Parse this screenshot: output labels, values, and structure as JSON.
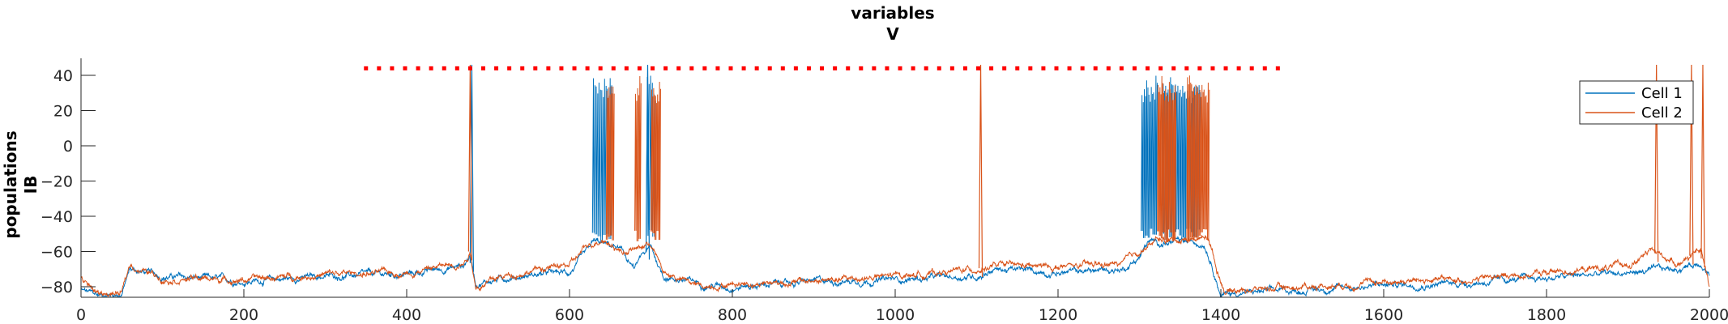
{
  "chart_data": {
    "type": "line",
    "title": [
      "variables",
      "V"
    ],
    "ylabel": [
      "populations",
      "IB"
    ],
    "xlabel": "",
    "xlim": [
      0,
      2000
    ],
    "ylim": [
      -86,
      46
    ],
    "xticks": [
      0,
      200,
      400,
      600,
      800,
      1000,
      1200,
      1400,
      1600,
      1800,
      2000
    ],
    "yticks": [
      -80,
      -60,
      -40,
      -20,
      0,
      20,
      40
    ],
    "grid": false,
    "legend": {
      "position": "top-right",
      "entries": [
        "Cell 1",
        "Cell 2"
      ]
    },
    "colors": {
      "cell1": "#0072BD",
      "cell2": "#D95319",
      "marker": "#FF0000"
    },
    "series": [
      {
        "name": "Cell 1",
        "baseline": [
          [
            0,
            -82
          ],
          [
            20,
            -85
          ],
          [
            50,
            -84
          ],
          [
            60,
            -70
          ],
          [
            100,
            -74
          ],
          [
            200,
            -77
          ],
          [
            300,
            -74
          ],
          [
            400,
            -73
          ],
          [
            470,
            -68
          ],
          [
            478,
            -62
          ],
          [
            485,
            -78
          ],
          [
            520,
            -75
          ],
          [
            560,
            -73
          ],
          [
            600,
            -72
          ],
          [
            620,
            -62
          ],
          [
            630,
            -55
          ],
          [
            660,
            -58
          ],
          [
            680,
            -70
          ],
          [
            690,
            -62
          ],
          [
            700,
            -58
          ],
          [
            715,
            -74
          ],
          [
            760,
            -78
          ],
          [
            800,
            -80
          ],
          [
            900,
            -77
          ],
          [
            1000,
            -76
          ],
          [
            1100,
            -74
          ],
          [
            1120,
            -70
          ],
          [
            1200,
            -72
          ],
          [
            1280,
            -70
          ],
          [
            1300,
            -63
          ],
          [
            1310,
            -55
          ],
          [
            1380,
            -55
          ],
          [
            1390,
            -68
          ],
          [
            1400,
            -84
          ],
          [
            1500,
            -82
          ],
          [
            1600,
            -79
          ],
          [
            1700,
            -78
          ],
          [
            1800,
            -75
          ],
          [
            1900,
            -72
          ],
          [
            1960,
            -70
          ],
          [
            1990,
            -66
          ],
          [
            2000,
            -72
          ]
        ],
        "bursts": [
          [
            628,
            652,
            7
          ],
          [
            694,
            706,
            3
          ],
          [
            1302,
            1322,
            7
          ],
          [
            1328,
            1352,
            8
          ],
          [
            1352,
            1375,
            8
          ]
        ],
        "spikes": [
          480,
          696
        ]
      },
      {
        "name": "Cell 2",
        "baseline": [
          [
            0,
            -75
          ],
          [
            20,
            -84
          ],
          [
            50,
            -84
          ],
          [
            60,
            -68
          ],
          [
            100,
            -75
          ],
          [
            200,
            -76
          ],
          [
            300,
            -73
          ],
          [
            400,
            -72
          ],
          [
            470,
            -66
          ],
          [
            478,
            -60
          ],
          [
            485,
            -80
          ],
          [
            520,
            -74
          ],
          [
            560,
            -70
          ],
          [
            600,
            -68
          ],
          [
            620,
            -58
          ],
          [
            640,
            -52
          ],
          [
            665,
            -60
          ],
          [
            685,
            -58
          ],
          [
            700,
            -55
          ],
          [
            715,
            -72
          ],
          [
            760,
            -80
          ],
          [
            800,
            -78
          ],
          [
            900,
            -77
          ],
          [
            1000,
            -74
          ],
          [
            1100,
            -70
          ],
          [
            1120,
            -68
          ],
          [
            1200,
            -69
          ],
          [
            1280,
            -67
          ],
          [
            1300,
            -60
          ],
          [
            1320,
            -54
          ],
          [
            1385,
            -52
          ],
          [
            1395,
            -70
          ],
          [
            1405,
            -82
          ],
          [
            1500,
            -80
          ],
          [
            1600,
            -77
          ],
          [
            1700,
            -76
          ],
          [
            1800,
            -72
          ],
          [
            1900,
            -68
          ],
          [
            1930,
            -60
          ],
          [
            1960,
            -66
          ],
          [
            1990,
            -60
          ],
          [
            2000,
            -80
          ]
        ],
        "bursts": [
          [
            645,
            655,
            4
          ],
          [
            680,
            688,
            3
          ],
          [
            700,
            712,
            5
          ],
          [
            1322,
            1345,
            10
          ],
          [
            1358,
            1386,
            11
          ]
        ],
        "spikes": [
          478,
          1105,
          1935,
          1978,
          1992
        ]
      }
    ],
    "marker_row": {
      "y": 44,
      "x_start": 350,
      "x_end": 1480,
      "step": 16
    }
  }
}
